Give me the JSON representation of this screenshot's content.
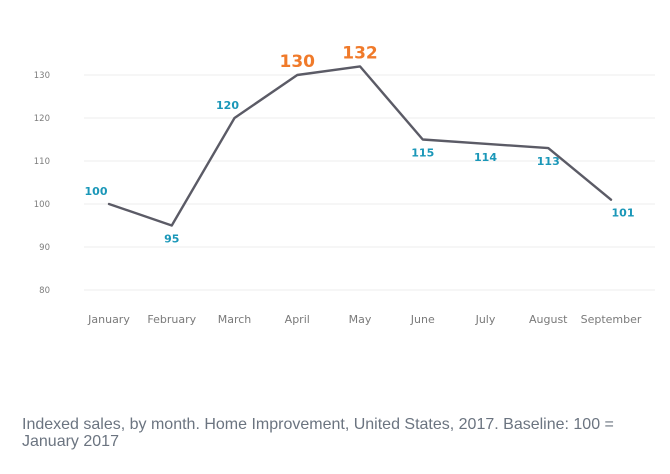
{
  "caption": "Indexed sales, by month. Home Improvement, United States, 2017. Baseline: 100 = January 2017",
  "colors": {
    "line": "#5b5b66",
    "label": "#1a97b8",
    "highlight": "#f07a2a",
    "grid": "#ededed"
  },
  "chart_data": {
    "type": "line",
    "categories": [
      "January",
      "February",
      "March",
      "April",
      "May",
      "June",
      "July",
      "August",
      "September"
    ],
    "series": [
      {
        "values": [
          100,
          95,
          120,
          130,
          132,
          115,
          114,
          113,
          101
        ]
      }
    ],
    "data_labels": [
      "100",
      "95",
      "120",
      "130",
      "132",
      "115",
      "114",
      "113",
      "101"
    ],
    "highlighted": [
      "April",
      "May"
    ],
    "yticks": [
      80,
      90,
      100,
      110,
      120,
      130
    ],
    "ylim": [
      80,
      130
    ],
    "grid": true,
    "legend": "none"
  }
}
